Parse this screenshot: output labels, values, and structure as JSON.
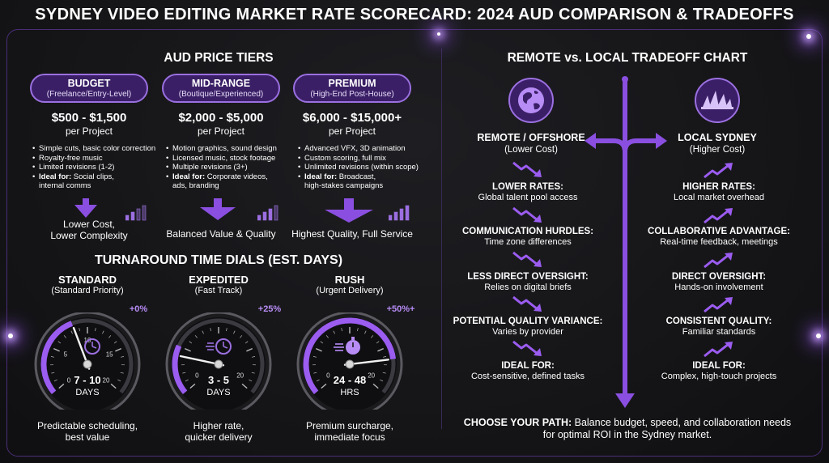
{
  "title": "SYDNEY VIDEO EDITING MARKET RATE SCORECARD: 2024 AUD COMPARISON & TRADEOFFS",
  "tiers_section": {
    "title": "AUD PRICE TIERS",
    "tiers": [
      {
        "name": "BUDGET",
        "subtitle": "(Freelance/Entry-Level)",
        "price": "$500 - $1,500",
        "per": "per Project",
        "features": [
          "Simple cuts, basic color correction",
          "Royalty-free music",
          "Limited revisions (1-2)"
        ],
        "ideal_label": "Ideal for:",
        "ideal_text": " Social clips,",
        "ideal_text2": "internal comms",
        "summary_line1": "Lower Cost,",
        "summary_line2": "Lower Complexity",
        "level": 1
      },
      {
        "name": "MID-RANGE",
        "subtitle": "(Boutique/Experienced)",
        "price": "$2,000 - $5,000",
        "per": "per Project",
        "features": [
          "Motion graphics, sound design",
          "Licensed music, stock footage",
          "Multiple revisions (3+)"
        ],
        "ideal_label": "Ideal for:",
        "ideal_text": " Corporate videos,",
        "ideal_text2": "ads, branding",
        "summary_line1": "Balanced Value & Quality",
        "summary_line2": "",
        "level": 2
      },
      {
        "name": "PREMIUM",
        "subtitle": "(High-End Post-House)",
        "price": "$6,000 - $15,000+",
        "per": "per Project",
        "features": [
          "Advanced VFX, 3D animation",
          "Custom scoring, full mix",
          "Unlimited revisions (within scope)"
        ],
        "ideal_label": "Ideal for:",
        "ideal_text": " Broadcast,",
        "ideal_text2": "high-stakes campaigns",
        "summary_line1": "Highest Quality, Full Service",
        "summary_line2": "",
        "level": 3
      }
    ]
  },
  "dials_section": {
    "title": "TURNAROUND TIME DIALS (EST. DAYS)",
    "dials": [
      {
        "name": "STANDARD",
        "subtitle": "(Standard Priority)",
        "surcharge": "+0%",
        "value": "7 - 10",
        "unit": "DAYS",
        "ticks": [
          "0",
          "5",
          "10",
          "15",
          "20"
        ],
        "needle_fraction": 0.42,
        "desc1": "Predictable scheduling,",
        "desc2": "best value",
        "icon": "clock-icon"
      },
      {
        "name": "EXPEDITED",
        "subtitle": "(Fast Track)",
        "surcharge": "+25%",
        "value": "3 - 5",
        "unit": "DAYS",
        "ticks": [
          "0",
          "20"
        ],
        "needle_fraction": 0.2,
        "desc1": "Higher rate,",
        "desc2": "quicker delivery",
        "icon": "fast-clock-icon"
      },
      {
        "name": "RUSH",
        "subtitle": "(Urgent Delivery)",
        "surcharge": "+50%+",
        "value": "24 - 48",
        "unit": "HRS",
        "ticks": [
          "0",
          "20"
        ],
        "needle_fraction": 0.82,
        "desc1": "Premium surcharge,",
        "desc2": "immediate focus",
        "icon": "stopwatch-icon"
      }
    ]
  },
  "tradeoff": {
    "title": "REMOTE vs. LOCAL TRADEOFF CHART",
    "remote": {
      "heading": "REMOTE / OFFSHORE",
      "sub": "(Lower Cost)",
      "icon": "globe-icon",
      "items": [
        {
          "h": "LOWER RATES:",
          "t": "Global talent pool access"
        },
        {
          "h": "COMMUNICATION HURDLES:",
          "t": "Time zone differences"
        },
        {
          "h": "LESS DIRECT OVERSIGHT:",
          "t": "Relies on digital briefs"
        },
        {
          "h": "POTENTIAL QUALITY VARIANCE:",
          "t": "Varies by provider"
        },
        {
          "h": "IDEAL FOR:",
          "t": "Cost-sensitive, defined tasks"
        }
      ]
    },
    "local": {
      "heading": "LOCAL SYDNEY",
      "sub": "(Higher Cost)",
      "icon": "opera-house-icon",
      "items": [
        {
          "h": "HIGHER RATES:",
          "t": "Local market overhead"
        },
        {
          "h": "COLLABORATIVE ADVANTAGE:",
          "t": "Real-time feedback, meetings"
        },
        {
          "h": "DIRECT OVERSIGHT:",
          "t": "Hands-on involvement"
        },
        {
          "h": "CONSISTENT QUALITY:",
          "t": "Familiar standards"
        },
        {
          "h": "IDEAL FOR:",
          "t": "Complex, high-touch projects"
        }
      ]
    },
    "footer_bold": "CHOOSE YOUR PATH:",
    "footer_text": " Balance budget, speed, and collaboration needs",
    "footer_text2": "for optimal ROI in the Sydney market."
  },
  "colors": {
    "accent": "#8a4fe0",
    "accent_light": "#b78cf5",
    "pill_bg": "#3a1f66",
    "background": "#141416"
  }
}
